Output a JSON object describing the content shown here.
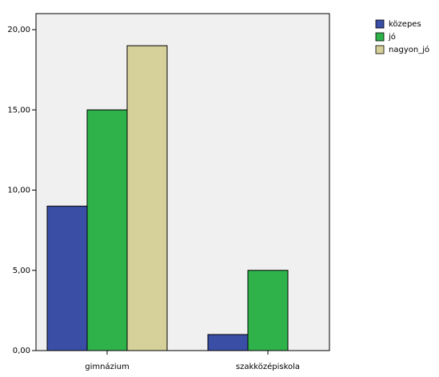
{
  "chart_data": {
    "type": "bar",
    "categories": [
      "gimnázium",
      "szakközépiskola"
    ],
    "series": [
      {
        "name": "közepes",
        "color": "#3b4ea6",
        "values": [
          9,
          1
        ]
      },
      {
        "name": "jó",
        "color": "#2fb24a",
        "values": [
          15,
          5
        ]
      },
      {
        "name": "nagyon_jó",
        "color": "#d6d09a",
        "values": [
          19,
          0
        ]
      }
    ],
    "ylim": [
      0,
      21
    ],
    "yticks": [
      {
        "value": 0,
        "label": "0,00"
      },
      {
        "value": 5,
        "label": "5,00"
      },
      {
        "value": 10,
        "label": "10,00"
      },
      {
        "value": 15,
        "label": "15,00"
      },
      {
        "value": 20,
        "label": "20,00"
      }
    ],
    "legend": "right",
    "background": "#f0f0f0"
  }
}
